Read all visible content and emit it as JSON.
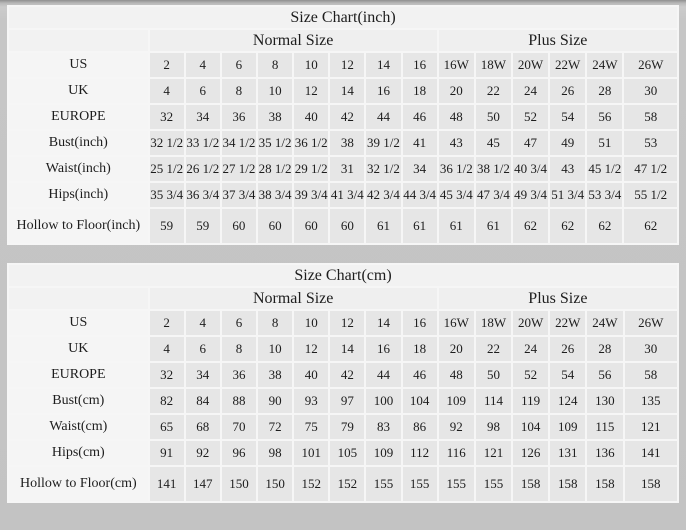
{
  "page": {
    "background": "#c6c6c6",
    "panel_background": "#f1f1f1",
    "label_cell_color": "#f5f5f5",
    "data_cell_color": "#e6e6e6",
    "text_color": "#1d1d1d"
  },
  "chart_data": [
    {
      "type": "table",
      "title": "Size Chart(inch)",
      "column_groups": [
        {
          "label": "Normal Size",
          "span": 8
        },
        {
          "label": "Plus Size",
          "span": 6
        }
      ],
      "rows": [
        {
          "label": "US",
          "values": [
            "2",
            "4",
            "6",
            "8",
            "10",
            "12",
            "14",
            "16",
            "16W",
            "18W",
            "20W",
            "22W",
            "24W",
            "26W"
          ]
        },
        {
          "label": "UK",
          "values": [
            "4",
            "6",
            "8",
            "10",
            "12",
            "14",
            "16",
            "18",
            "20",
            "22",
            "24",
            "26",
            "28",
            "30"
          ]
        },
        {
          "label": "EUROPE",
          "values": [
            "32",
            "34",
            "36",
            "38",
            "40",
            "42",
            "44",
            "46",
            "48",
            "50",
            "52",
            "54",
            "56",
            "58"
          ]
        },
        {
          "label": "Bust(inch)",
          "values": [
            "32 1/2",
            "33 1/2",
            "34 1/2",
            "35 1/2",
            "36 1/2",
            "38",
            "39 1/2",
            "41",
            "43",
            "45",
            "47",
            "49",
            "51",
            "53"
          ]
        },
        {
          "label": "Waist(inch)",
          "values": [
            "25 1/2",
            "26 1/2",
            "27 1/2",
            "28 1/2",
            "29 1/2",
            "31",
            "32 1/2",
            "34",
            "36 1/2",
            "38 1/2",
            "40 3/4",
            "43",
            "45 1/2",
            "47 1/2"
          ]
        },
        {
          "label": "Hips(inch)",
          "values": [
            "35 3/4",
            "36 3/4",
            "37 3/4",
            "38 3/4",
            "39 3/4",
            "41 3/4",
            "42 3/4",
            "44 3/4",
            "45 3/4",
            "47 3/4",
            "49 3/4",
            "51 3/4",
            "53 3/4",
            "55 1/2"
          ]
        },
        {
          "label": "Hollow to Floor(inch)",
          "values": [
            "59",
            "59",
            "60",
            "60",
            "60",
            "60",
            "61",
            "61",
            "61",
            "61",
            "62",
            "62",
            "62",
            "62"
          ],
          "tall": true
        }
      ]
    },
    {
      "type": "table",
      "title": "Size Chart(cm)",
      "column_groups": [
        {
          "label": "Normal Size",
          "span": 8
        },
        {
          "label": "Plus Size",
          "span": 6
        }
      ],
      "rows": [
        {
          "label": "US",
          "values": [
            "2",
            "4",
            "6",
            "8",
            "10",
            "12",
            "14",
            "16",
            "16W",
            "18W",
            "20W",
            "22W",
            "24W",
            "26W"
          ]
        },
        {
          "label": "UK",
          "values": [
            "4",
            "6",
            "8",
            "10",
            "12",
            "14",
            "16",
            "18",
            "20",
            "22",
            "24",
            "26",
            "28",
            "30"
          ]
        },
        {
          "label": "EUROPE",
          "values": [
            "32",
            "34",
            "36",
            "38",
            "40",
            "42",
            "44",
            "46",
            "48",
            "50",
            "52",
            "54",
            "56",
            "58"
          ]
        },
        {
          "label": "Bust(cm)",
          "values": [
            "82",
            "84",
            "88",
            "90",
            "93",
            "97",
            "100",
            "104",
            "109",
            "114",
            "119",
            "124",
            "130",
            "135"
          ]
        },
        {
          "label": "Waist(cm)",
          "values": [
            "65",
            "68",
            "70",
            "72",
            "75",
            "79",
            "83",
            "86",
            "92",
            "98",
            "104",
            "109",
            "115",
            "121"
          ]
        },
        {
          "label": "Hips(cm)",
          "values": [
            "91",
            "92",
            "96",
            "98",
            "101",
            "105",
            "109",
            "112",
            "116",
            "121",
            "126",
            "131",
            "136",
            "141"
          ]
        },
        {
          "label": "Hollow to Floor(cm)",
          "values": [
            "141",
            "147",
            "150",
            "150",
            "152",
            "152",
            "155",
            "155",
            "155",
            "155",
            "158",
            "158",
            "158",
            "158"
          ],
          "tall": true
        }
      ]
    }
  ],
  "layout": {
    "column_widths": {
      "label": 140,
      "normal": 36,
      "plus": 37,
      "plus_last": 54
    }
  }
}
